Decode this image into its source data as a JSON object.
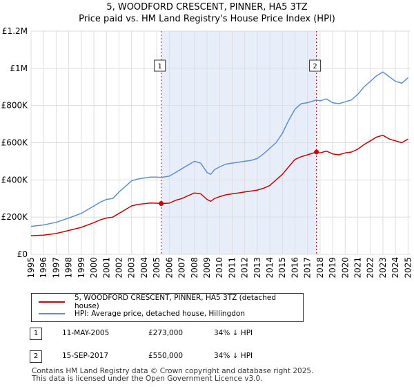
{
  "chart_data": {
    "type": "line",
    "title": "5, WOODFORD CRESCENT, PINNER, HA5 3TZ",
    "subtitle": "Price paid vs. HM Land Registry's House Price Index (HPI)",
    "xlim": [
      1995,
      2025.2
    ],
    "ylim": [
      0,
      1200000
    ],
    "y_ticks": [
      {
        "value": 0,
        "label": "£0"
      },
      {
        "value": 200000,
        "label": "£200K"
      },
      {
        "value": 400000,
        "label": "£400K"
      },
      {
        "value": 600000,
        "label": "£600K"
      },
      {
        "value": 800000,
        "label": "£800K"
      },
      {
        "value": 1000000,
        "label": "£1M"
      },
      {
        "value": 1200000,
        "label": "£1.2M"
      }
    ],
    "x_ticks": [
      "1995",
      "1996",
      "1997",
      "1998",
      "1999",
      "2000",
      "2001",
      "2002",
      "2003",
      "2004",
      "2005",
      "2006",
      "2007",
      "2008",
      "2009",
      "2010",
      "2011",
      "2012",
      "2013",
      "2014",
      "2015",
      "2016",
      "2017",
      "2018",
      "2019",
      "2020",
      "2021",
      "2022",
      "2023",
      "2024",
      "2025"
    ],
    "shaded_region": [
      2005.36,
      2017.71
    ],
    "series": [
      {
        "name": "5, WOODFORD CRESCENT, PINNER, HA5 3TZ (detached house)",
        "color": "#cc0000",
        "x": [
          1995.0,
          1996.0,
          1997.0,
          1998.0,
          1999.0,
          2000.0,
          2000.5,
          2001.0,
          2001.5,
          2002.0,
          2002.5,
          2003.0,
          2003.5,
          2004.0,
          2004.5,
          2005.0,
          2005.36,
          2006.0,
          2006.5,
          2007.0,
          2007.5,
          2008.0,
          2008.5,
          2009.0,
          2009.3,
          2009.6,
          2010.0,
          2010.5,
          2011.0,
          2011.5,
          2012.0,
          2012.5,
          2013.0,
          2013.5,
          2014.0,
          2014.5,
          2015.0,
          2015.5,
          2016.0,
          2016.5,
          2017.0,
          2017.71,
          2018.0,
          2018.5,
          2019.0,
          2019.5,
          2020.0,
          2020.5,
          2021.0,
          2021.5,
          2022.0,
          2022.5,
          2023.0,
          2023.5,
          2024.0,
          2024.5,
          2025.0
        ],
        "values": [
          100000,
          103000,
          112000,
          128000,
          145000,
          170000,
          185000,
          195000,
          200000,
          220000,
          240000,
          260000,
          268000,
          272000,
          276000,
          275000,
          273000,
          275000,
          290000,
          300000,
          315000,
          330000,
          325000,
          295000,
          285000,
          300000,
          310000,
          320000,
          325000,
          330000,
          335000,
          340000,
          345000,
          355000,
          370000,
          400000,
          430000,
          470000,
          510000,
          525000,
          535000,
          550000,
          545000,
          555000,
          540000,
          535000,
          545000,
          550000,
          565000,
          590000,
          610000,
          630000,
          640000,
          620000,
          610000,
          600000,
          620000
        ]
      },
      {
        "name": "HPI: Average price, detached house, Hillingdon",
        "color": "#5b8fd1",
        "x": [
          1995.0,
          1996.0,
          1997.0,
          1998.0,
          1999.0,
          2000.0,
          2000.5,
          2001.0,
          2001.5,
          2002.0,
          2002.5,
          2003.0,
          2003.5,
          2004.0,
          2004.5,
          2005.0,
          2005.36,
          2006.0,
          2006.5,
          2007.0,
          2007.5,
          2008.0,
          2008.5,
          2009.0,
          2009.3,
          2009.6,
          2010.0,
          2010.5,
          2011.0,
          2011.5,
          2012.0,
          2012.5,
          2013.0,
          2013.5,
          2014.0,
          2014.5,
          2015.0,
          2015.5,
          2016.0,
          2016.5,
          2017.0,
          2017.71,
          2018.0,
          2018.5,
          2019.0,
          2019.5,
          2020.0,
          2020.5,
          2021.0,
          2021.5,
          2022.0,
          2022.5,
          2023.0,
          2023.5,
          2024.0,
          2024.5,
          2025.0
        ],
        "values": [
          150000,
          158000,
          172000,
          195000,
          220000,
          260000,
          280000,
          295000,
          300000,
          335000,
          365000,
          395000,
          405000,
          410000,
          415000,
          415000,
          413000,
          420000,
          440000,
          460000,
          480000,
          500000,
          490000,
          440000,
          430000,
          455000,
          470000,
          485000,
          490000,
          495000,
          500000,
          505000,
          515000,
          540000,
          570000,
          600000,
          650000,
          720000,
          780000,
          810000,
          815000,
          830000,
          825000,
          835000,
          815000,
          810000,
          820000,
          830000,
          860000,
          900000,
          930000,
          960000,
          980000,
          955000,
          930000,
          920000,
          950000
        ]
      }
    ],
    "sales": [
      {
        "marker": "1",
        "x": 2005.36,
        "y": 273000,
        "date": "11-MAY-2005",
        "price": "£273,000",
        "hpi": "34% ↓ HPI"
      },
      {
        "marker": "2",
        "x": 2017.71,
        "y": 550000,
        "date": "15-SEP-2017",
        "price": "£550,000",
        "hpi": "34% ↓ HPI"
      }
    ],
    "legend_position": "bottom"
  },
  "legend": {
    "red_label": "5, WOODFORD CRESCENT, PINNER, HA5 3TZ (detached house)",
    "blue_label": "HPI: Average price, detached house, Hillingdon"
  },
  "footer": {
    "line1": "Contains HM Land Registry data © Crown copyright and database right 2025.",
    "line2": "This data is licensed under the Open Government Licence v3.0."
  },
  "colors": {
    "red": "#cc0000",
    "blue": "#5b8fd1",
    "shade": "#e8eef9",
    "grid": "#dddddd"
  }
}
